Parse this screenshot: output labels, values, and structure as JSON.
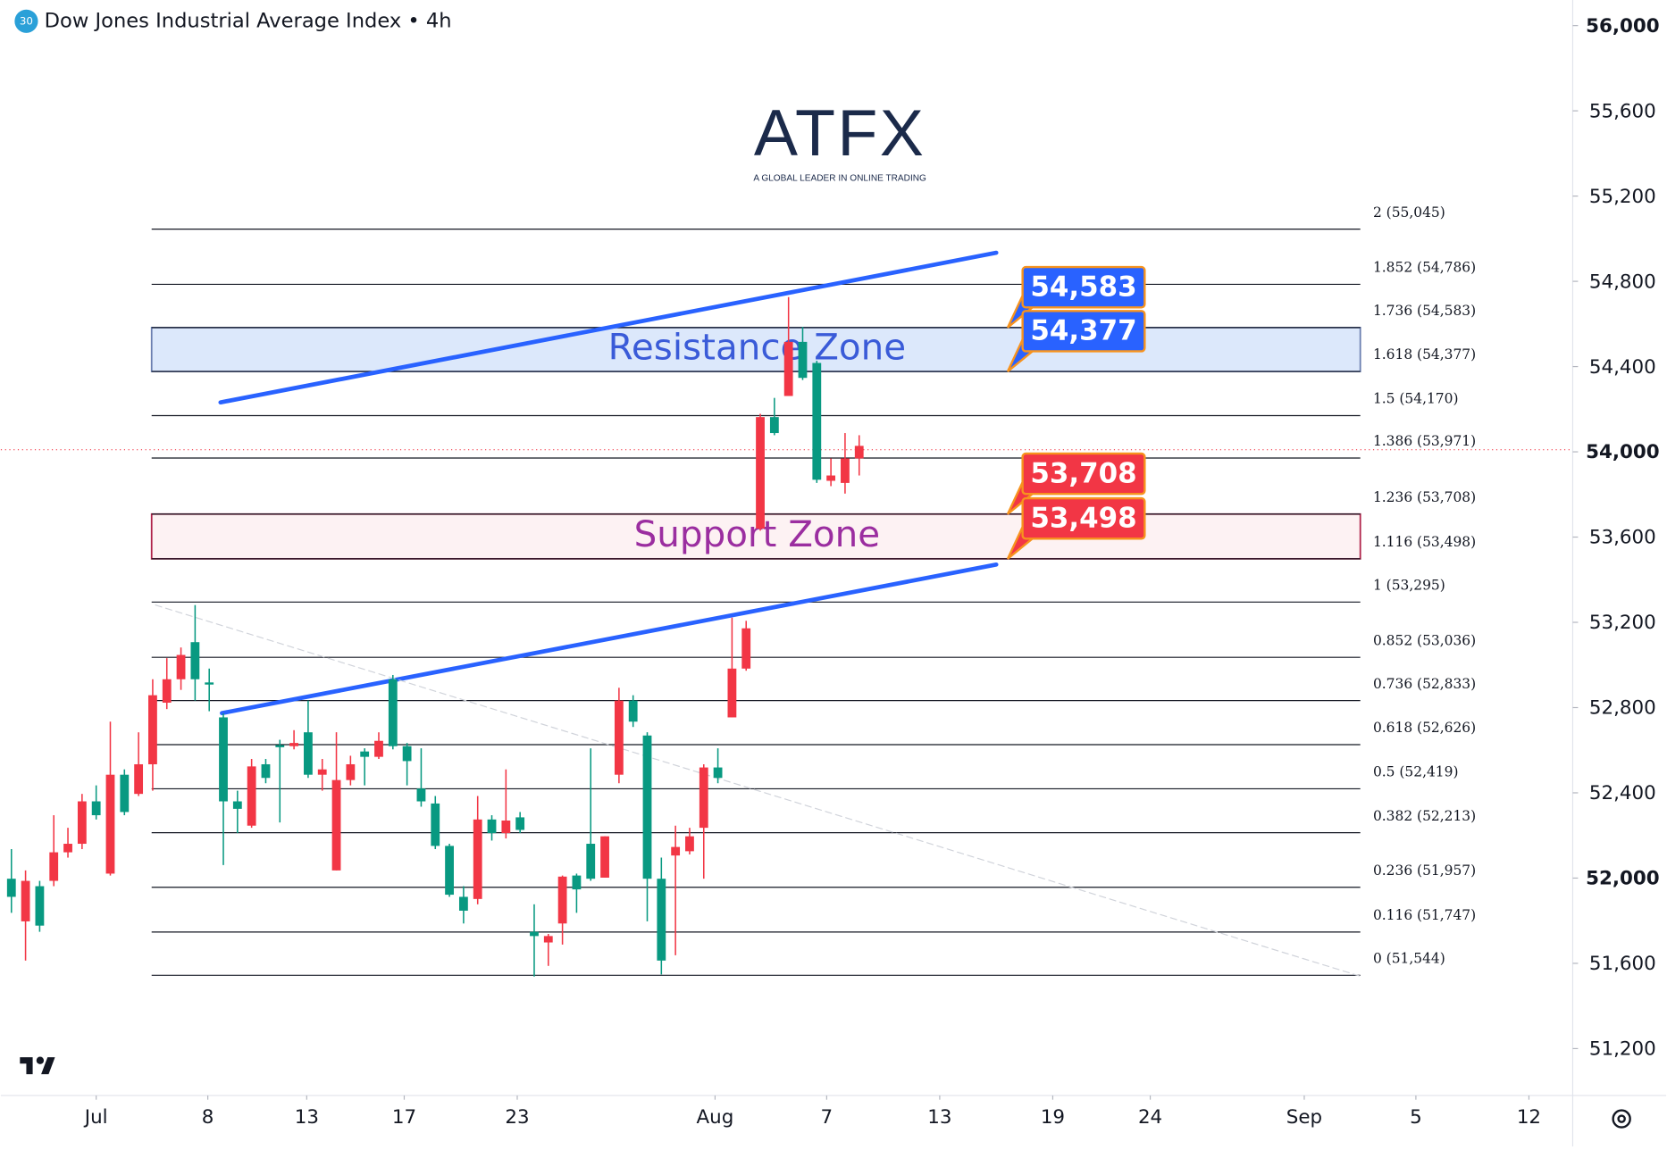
{
  "chart_data": {
    "type": "candlestick",
    "title": "Dow Jones Industrial Average Index • 4h",
    "badge": "30",
    "logo": {
      "text": "ATFX",
      "tagline": "A GLOBAL LEADER IN ONLINE TRADING"
    },
    "x": [
      0,
      1,
      2,
      3,
      4,
      5,
      6,
      7,
      8,
      9,
      10,
      11,
      12,
      13,
      14,
      15,
      16,
      17,
      18,
      19,
      20,
      21,
      22,
      23,
      24,
      25,
      26,
      27,
      28,
      29,
      30,
      31,
      32,
      33,
      34,
      35,
      36,
      37,
      38,
      39,
      40,
      41,
      42,
      43,
      44,
      45,
      46,
      47,
      48,
      49,
      50,
      51,
      52,
      53,
      54,
      55,
      56,
      57,
      58,
      59,
      60
    ],
    "series": [
      {
        "up_color": "#089981",
        "down_color": "#f23645",
        "open": [
          51912,
          51987,
          51777,
          52121,
          52161,
          52360,
          52295,
          52485,
          52310,
          52534,
          52858,
          52933,
          53047,
          52933,
          52908,
          52360,
          52325,
          52524,
          52470,
          52614,
          52634,
          52485,
          52510,
          52460,
          52534,
          52569,
          52644,
          52619,
          52549,
          52360,
          52151,
          51922,
          51847,
          52275,
          52211,
          52270,
          52226,
          51728,
          51728,
          52007,
          51947,
          51997,
          52196,
          52833,
          52734,
          51997,
          51613,
          52146,
          52196,
          52519,
          52470,
          52983,
          53172,
          54163,
          54088,
          54516,
          54347,
          53869,
          53889,
          53969,
          54028
        ],
        "high": [
          52136,
          52036,
          51987,
          52295,
          52236,
          52395,
          52435,
          52734,
          52510,
          52684,
          52933,
          53032,
          53082,
          53281,
          52983,
          52773,
          52410,
          52559,
          52559,
          52649,
          52694,
          52833,
          52559,
          52684,
          52574,
          52609,
          52684,
          52953,
          52634,
          52609,
          52385,
          52161,
          51962,
          52385,
          52295,
          52510,
          52310,
          51877,
          51738,
          52012,
          52021,
          52609,
          52196,
          52893,
          52858,
          52684,
          52096,
          52246,
          52236,
          52534,
          52609,
          53222,
          53207,
          54178,
          54253,
          54726,
          54586,
          54427,
          53969,
          54088,
          54078
        ],
        "low": [
          51837,
          51613,
          51748,
          51962,
          52096,
          52136,
          52275,
          52012,
          52295,
          52385,
          52410,
          52793,
          52883,
          52833,
          52783,
          52061,
          52211,
          52236,
          52445,
          52261,
          52604,
          52470,
          52410,
          52036,
          52435,
          52435,
          52559,
          52604,
          52435,
          52335,
          52136,
          51912,
          51787,
          51877,
          52176,
          52186,
          52211,
          51538,
          51588,
          51688,
          51837,
          51987,
          52002,
          52445,
          52709,
          51797,
          51548,
          51638,
          52111,
          51997,
          52445,
          52754,
          52973,
          53630,
          54078,
          54262,
          54337,
          53854,
          53839,
          53804,
          53889
        ],
        "close": [
          51997,
          51797,
          51962,
          51987,
          52121,
          52161,
          52360,
          52021,
          52485,
          52395,
          52534,
          52823,
          52933,
          53107,
          52918,
          52754,
          52360,
          52246,
          52534,
          52624,
          52619,
          52684,
          52485,
          52036,
          52460,
          52594,
          52569,
          52933,
          52619,
          52420,
          52350,
          52151,
          51912,
          51902,
          52275,
          52211,
          52285,
          51748,
          51698,
          51787,
          52012,
          52161,
          52002,
          52485,
          52833,
          52669,
          51997,
          52106,
          52126,
          52236,
          52519,
          52754,
          52983,
          53640,
          54163,
          54262,
          54516,
          54417,
          53864,
          53854,
          53969
        ]
      }
    ],
    "xlim": [
      -0.75,
      110.5
    ],
    "ylim": [
      50980,
      56120
    ],
    "xticks": [
      {
        "value": 6.0,
        "label": "Jul"
      },
      {
        "value": 13.9,
        "label": "8"
      },
      {
        "value": 20.9,
        "label": "13"
      },
      {
        "value": 27.8,
        "label": "17"
      },
      {
        "value": 35.8,
        "label": "23"
      },
      {
        "value": 49.8,
        "label": "Aug"
      },
      {
        "value": 57.7,
        "label": "7"
      },
      {
        "value": 65.7,
        "label": "13"
      },
      {
        "value": 73.7,
        "label": "19"
      },
      {
        "value": 80.6,
        "label": "24"
      },
      {
        "value": 91.5,
        "label": "Sep"
      },
      {
        "value": 99.4,
        "label": "5"
      },
      {
        "value": 107.4,
        "label": "12"
      }
    ],
    "yticks": [
      {
        "value": 51200,
        "label": "51,200"
      },
      {
        "value": 51600,
        "label": "51,600"
      },
      {
        "value": 52000,
        "label": "52,000"
      },
      {
        "value": 52400,
        "label": "52,400"
      },
      {
        "value": 52800,
        "label": "52,800"
      },
      {
        "value": 53200,
        "label": "53,200"
      },
      {
        "value": 53600,
        "label": "53,600"
      },
      {
        "value": 54000,
        "label": "54,000"
      },
      {
        "value": 54400,
        "label": "54,400"
      },
      {
        "value": 54800,
        "label": "54,800"
      },
      {
        "value": 55200,
        "label": "55,200"
      },
      {
        "value": 55600,
        "label": "55,600"
      },
      {
        "value": 56000,
        "label": "56,000"
      }
    ],
    "last_price": 54010,
    "fib_levels": [
      {
        "value": 55045,
        "label": "2 (55,045)"
      },
      {
        "value": 54786,
        "label": "1.852 (54,786)"
      },
      {
        "value": 54583,
        "label": "1.736 (54,583)"
      },
      {
        "value": 54377,
        "label": "1.618 (54,377)"
      },
      {
        "value": 54170,
        "label": "1.5 (54,170)"
      },
      {
        "value": 53971,
        "label": "1.386 (53,971)"
      },
      {
        "value": 53708,
        "label": "1.236 (53,708)"
      },
      {
        "value": 53498,
        "label": "1.116 (53,498)"
      },
      {
        "value": 53295,
        "label": "1 (53,295)"
      },
      {
        "value": 53036,
        "label": "0.852 (53,036)"
      },
      {
        "value": 52833,
        "label": "0.736 (52,833)"
      },
      {
        "value": 52626,
        "label": "0.618 (52,626)"
      },
      {
        "value": 52419,
        "label": "0.5 (52,419)"
      },
      {
        "value": 52213,
        "label": "0.382 (52,213)"
      },
      {
        "value": 51957,
        "label": "0.236 (51,957)"
      },
      {
        "value": 51747,
        "label": "0.116 (51,747)"
      },
      {
        "value": 51544,
        "label": "0 (51,544)"
      }
    ],
    "zones": [
      {
        "label": "Resistance Zone",
        "low": 54377,
        "high": 54583,
        "fill": "#dce8fb",
        "stroke": "#6b7fb0",
        "color": "#3a5bd8"
      },
      {
        "label": "Support Zone",
        "low": 53498,
        "high": 53708,
        "fill": "#fdf2f3",
        "stroke": "#b0234a",
        "color": "#9b2ea0"
      }
    ],
    "callouts": [
      {
        "value": 54583,
        "label": "54,583",
        "color": "#2962ff"
      },
      {
        "value": 54377,
        "label": "54,377",
        "color": "#2962ff"
      },
      {
        "value": 53708,
        "label": "53,708",
        "color": "#f23645"
      },
      {
        "value": 53498,
        "label": "53,498",
        "color": "#f23645"
      }
    ],
    "trendlines": [
      {
        "x": [
          14.8,
          69.7
        ],
        "y": [
          54232,
          54934
        ],
        "color": "#2962ff"
      },
      {
        "x": [
          14.9,
          69.7
        ],
        "y": [
          52774,
          53471
        ],
        "color": "#2962ff"
      },
      {
        "x": [
          10.2,
          95.5
        ],
        "y": [
          53281,
          51539
        ],
        "color": "#d0d3da",
        "dashed": true
      }
    ]
  }
}
